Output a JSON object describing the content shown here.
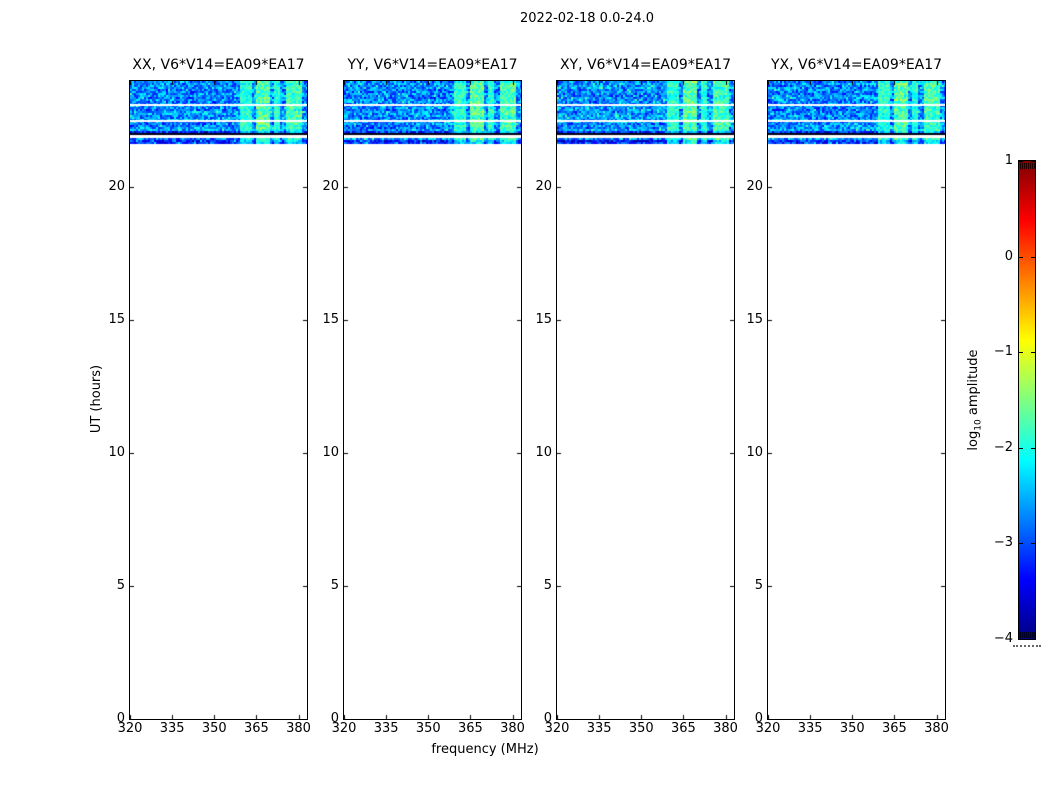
{
  "figure": {
    "title": "2022-02-18 0.0-24.0"
  },
  "chart_data": {
    "type": "heatmap",
    "title": "2022-02-18 0.0-24.0",
    "xlabel": "frequency (MHz)",
    "ylabel": "UT (hours)",
    "xlim": [
      320,
      383
    ],
    "ylim": [
      0,
      24
    ],
    "x_ticks": [
      320,
      335,
      350,
      365,
      380
    ],
    "y_ticks": [
      0,
      5,
      10,
      15,
      20
    ],
    "grid": false,
    "panels": [
      {
        "label": "XX, V6*V14=EA09*EA17",
        "seed": 11
      },
      {
        "label": "YY, V6*V14=EA09*EA17",
        "seed": 23
      },
      {
        "label": "XY, V6*V14=EA09*EA17",
        "seed": 37
      },
      {
        "label": "YX, V6*V14=EA09*EA17",
        "seed": 51
      }
    ],
    "data_blocks": [
      {
        "t_start_hour": 22.05,
        "t_end_hour": 24.0,
        "base_log_amp": [
          -3.3,
          -2.15
        ]
      },
      {
        "t_start_hour": 21.65,
        "t_end_hour": 21.85,
        "base_log_amp": [
          -3.3,
          -2.2
        ]
      }
    ],
    "flagged_times_hours": [
      23.15,
      22.55
    ],
    "dark_edge_hour": 22.05,
    "rfi_bands": [
      {
        "f_start_mhz": 359.5,
        "f_end_mhz": 363.5,
        "strength": 0.75
      },
      {
        "f_start_mhz": 365.0,
        "f_end_mhz": 369.5,
        "strength": 1.0
      },
      {
        "f_start_mhz": 371.0,
        "f_end_mhz": 373.5,
        "strength": 0.7
      },
      {
        "f_start_mhz": 375.5,
        "f_end_mhz": 381.5,
        "strength": 0.9
      }
    ],
    "rfi_log_amp_range": [
      -2.4,
      -1.1
    ],
    "no_data_region": "white below 21.65 hours",
    "colorbar": {
      "label_pre": "log",
      "label_sub": "10",
      "label_post": " amplitude",
      "ticks": [
        1,
        0,
        -1,
        -2,
        -3,
        -4
      ],
      "vmin": -4,
      "vmax": 1,
      "cmap": "jet",
      "gradient": [
        {
          "v": -4.0,
          "color": "#00007f"
        },
        {
          "v": -3.375,
          "color": "#0000ff"
        },
        {
          "v": -2.125,
          "color": "#00ffff"
        },
        {
          "v": -0.875,
          "color": "#ffff00"
        },
        {
          "v": 0.375,
          "color": "#ff0000"
        },
        {
          "v": 1.0,
          "color": "#7f0000"
        }
      ]
    }
  }
}
